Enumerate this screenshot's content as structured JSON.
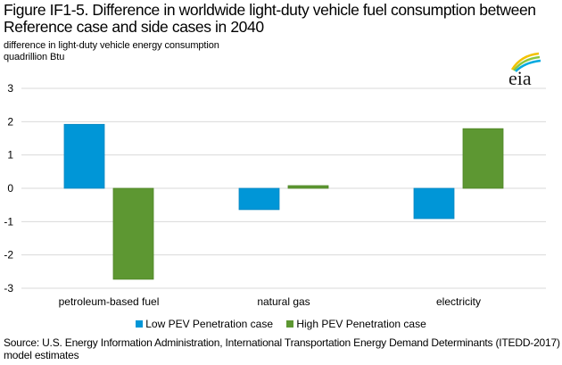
{
  "title": "Figure IF1-5. Difference in worldwide light-duty vehicle fuel consumption between Reference case and side cases in 2040",
  "subtitle_line1": "difference in light-duty vehicle energy consumption",
  "subtitle_line2": "quadrillion Btu",
  "logo_text": "eia",
  "source": "Source: U.S. Energy Information Administration, International Transportation Energy Demand Determinants (ITEDD-2017) model estimates",
  "colors": {
    "low": "#0096d7",
    "high": "#5d9732",
    "grid": "#d9d9d9"
  },
  "chart_data": {
    "type": "bar",
    "title": "Figure IF1-5. Difference in worldwide light-duty vehicle fuel consumption between Reference case and side cases in 2040",
    "xlabel": "",
    "ylabel": "difference in light-duty vehicle energy consumption, quadrillion Btu",
    "categories": [
      "petroleum-based fuel",
      "natural gas",
      "electricity"
    ],
    "series": [
      {
        "name": "Low PEV Penetration case",
        "values": [
          1.92,
          -0.64,
          -0.91
        ]
      },
      {
        "name": "High PEV Penetration case",
        "values": [
          -2.73,
          0.08,
          1.79
        ]
      }
    ],
    "ylim": [
      -3,
      3
    ],
    "yticks": [
      "3",
      "2",
      "1",
      "0",
      "-1",
      "-2",
      "-3"
    ],
    "ytick_values": [
      3,
      2,
      1,
      0,
      -1,
      -2,
      -3
    ],
    "grid": true,
    "legend_position": "bottom"
  }
}
